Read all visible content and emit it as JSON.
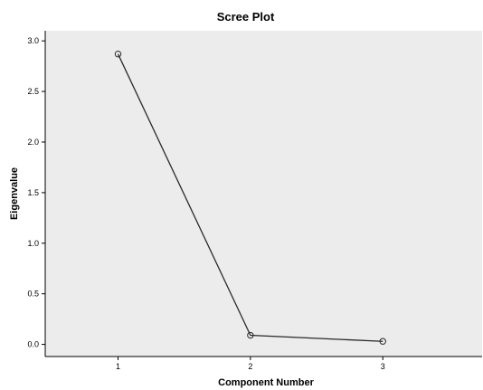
{
  "chart_data": {
    "type": "line",
    "title": "Scree Plot",
    "xlabel": "Component Number",
    "ylabel": "Eigenvalue",
    "x": [
      1,
      2,
      3
    ],
    "series": [
      {
        "values": [
          2.87,
          0.09,
          0.03
        ]
      }
    ],
    "xlim": [
      0.45,
      3.75
    ],
    "ylim": [
      -0.12,
      3.1
    ],
    "yticks": [
      0.0,
      0.5,
      1.0,
      1.5,
      2.0,
      2.5,
      3.0
    ],
    "ytick_labels": [
      "0.0",
      "0.5",
      "1.0",
      "1.5",
      "2.0",
      "2.5",
      "3.0"
    ],
    "xticks": [
      1,
      2,
      3
    ],
    "xtick_labels": [
      "1",
      "2",
      "3"
    ],
    "grid": false,
    "legend": "none",
    "markers": "open-circle",
    "colors": {
      "plot_background": "#ececec",
      "line": "#2a2a2a",
      "marker_stroke": "#2a2a2a",
      "axis": "#000000"
    }
  }
}
